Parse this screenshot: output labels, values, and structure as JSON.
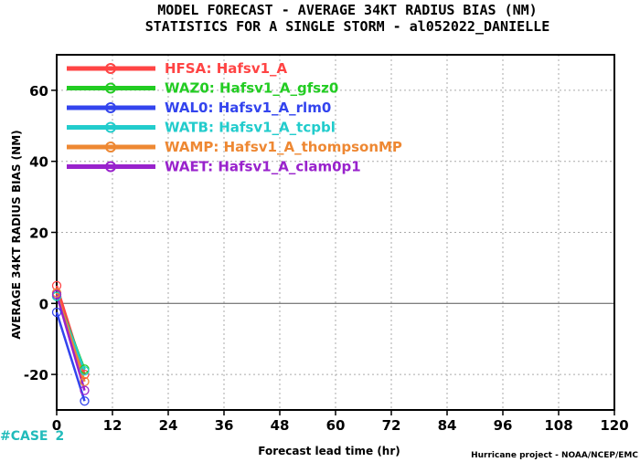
{
  "chart_data": {
    "type": "line",
    "title": "MODEL FORECAST - AVERAGE 34KT RADIUS BIAS (NM)",
    "subtitle": "STATISTICS FOR A SINGLE STORM - al052022_DANIELLE",
    "xlabel": "Forecast lead time (hr)",
    "ylabel": "AVERAGE 34KT RADIUS BIAS (NM)",
    "xlim": [
      0,
      120
    ],
    "ylim": [
      -30,
      70
    ],
    "xticks": [
      0,
      12,
      24,
      36,
      48,
      60,
      72,
      84,
      96,
      108,
      120
    ],
    "yticks": [
      -20,
      0,
      20,
      40,
      60
    ],
    "grid": true,
    "zero_line": true,
    "legend_position": "top-left",
    "series": [
      {
        "name": "HFSA: Hafsv1_A",
        "color": "#ff4444",
        "x": [
          0,
          6
        ],
        "y": [
          5,
          -20
        ]
      },
      {
        "name": "WAZ0: Hafsv1_A_gfsz0",
        "color": "#22cc22",
        "x": [
          0,
          6
        ],
        "y": [
          2,
          -18.5
        ]
      },
      {
        "name": "WAL0: Hafsv1_A_rlm0",
        "color": "#3344ee",
        "x": [
          0,
          6
        ],
        "y": [
          -2.5,
          -27.5
        ]
      },
      {
        "name": "WATB: Hafsv1_A_tcpbl",
        "color": "#22cccc",
        "x": [
          0,
          6
        ],
        "y": [
          2,
          -19
        ]
      },
      {
        "name": "WAMP: Hafsv1_A_thompsonMP",
        "color": "#ee8833",
        "x": [
          0,
          6
        ],
        "y": [
          3,
          -22
        ]
      },
      {
        "name": "WAET: Hafsv1_A_clam0p1",
        "color": "#9922cc",
        "x": [
          0,
          6
        ],
        "y": [
          2.5,
          -24.5
        ]
      }
    ],
    "case_label": "#CASE",
    "case_count": "2",
    "credit": "Hurricane project - NOAA/NCEP/EMC"
  }
}
